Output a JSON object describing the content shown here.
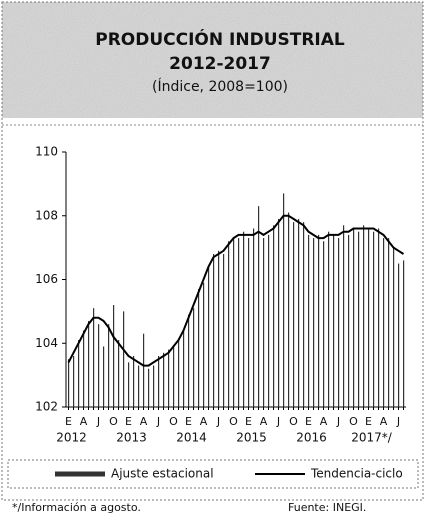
{
  "chart_data": {
    "type": "bar",
    "title": "PRODUCCIÓN INDUSTRIAL",
    "subtitle": "2012-2017",
    "unit_label": "(Índice, 2008=100)",
    "categories": [
      "E",
      null,
      null,
      "A",
      null,
      null,
      "J",
      null,
      null,
      "O",
      null,
      null,
      "E",
      null,
      null,
      "A",
      null,
      null,
      "J",
      null,
      null,
      "O",
      null,
      null,
      "E",
      null,
      null,
      "A",
      null,
      null,
      "J",
      null,
      null,
      "O",
      null,
      null,
      "E",
      null,
      null,
      "A",
      null,
      null,
      "J",
      null,
      null,
      "O",
      null,
      null,
      "E",
      null,
      null,
      "A",
      null,
      null,
      "J",
      null,
      null,
      "O",
      null,
      null,
      "E",
      null,
      null,
      "A",
      null,
      null,
      "J",
      null
    ],
    "year_labels": [
      "2012",
      "2013",
      "2014",
      "2015",
      "2016",
      "2017*/"
    ],
    "series": [
      {
        "name": "Ajuste estacional",
        "type": "bar",
        "color": "#333333",
        "values": [
          103.5,
          103.6,
          104.1,
          104.4,
          104.7,
          105.1,
          104.6,
          103.9,
          104.6,
          105.2,
          104.1,
          105.0,
          103.4,
          103.6,
          103.3,
          104.3,
          103.2,
          103.3,
          103.6,
          103.7,
          103.8,
          103.9,
          104.1,
          104.4,
          104.9,
          105.1,
          105.7,
          105.9,
          106.4,
          106.8,
          106.9,
          106.8,
          107.2,
          107.3,
          107.3,
          107.5,
          107.3,
          107.6,
          108.3,
          107.3,
          107.4,
          107.7,
          107.9,
          108.7,
          108.1,
          107.8,
          107.9,
          107.8,
          107.4,
          107.3,
          107.4,
          107.2,
          107.5,
          107.4,
          107.3,
          107.7,
          107.4,
          107.6,
          107.5,
          107.7,
          107.6,
          107.5,
          107.6,
          107.3,
          107.3,
          107.0,
          106.5,
          106.6
        ]
      },
      {
        "name": "Tendencia-ciclo",
        "type": "line",
        "color": "#000000",
        "values": [
          103.4,
          103.7,
          104.0,
          104.3,
          104.6,
          104.8,
          104.8,
          104.7,
          104.5,
          104.2,
          104.0,
          103.8,
          103.6,
          103.5,
          103.4,
          103.3,
          103.3,
          103.4,
          103.5,
          103.6,
          103.7,
          103.9,
          104.1,
          104.4,
          104.8,
          105.2,
          105.6,
          106.0,
          106.4,
          106.7,
          106.8,
          106.9,
          107.1,
          107.3,
          107.4,
          107.4,
          107.4,
          107.4,
          107.5,
          107.4,
          107.5,
          107.6,
          107.8,
          108.0,
          108.0,
          107.9,
          107.8,
          107.7,
          107.5,
          107.4,
          107.3,
          107.3,
          107.4,
          107.4,
          107.4,
          107.5,
          107.5,
          107.6,
          107.6,
          107.6,
          107.6,
          107.6,
          107.5,
          107.4,
          107.2,
          107.0,
          106.9,
          106.8
        ]
      }
    ],
    "ylim": [
      102,
      110
    ],
    "yticks": [
      102,
      104,
      106,
      108,
      110
    ],
    "footnote": "*/Información a agosto.",
    "source": "Fuente: INEGI."
  }
}
